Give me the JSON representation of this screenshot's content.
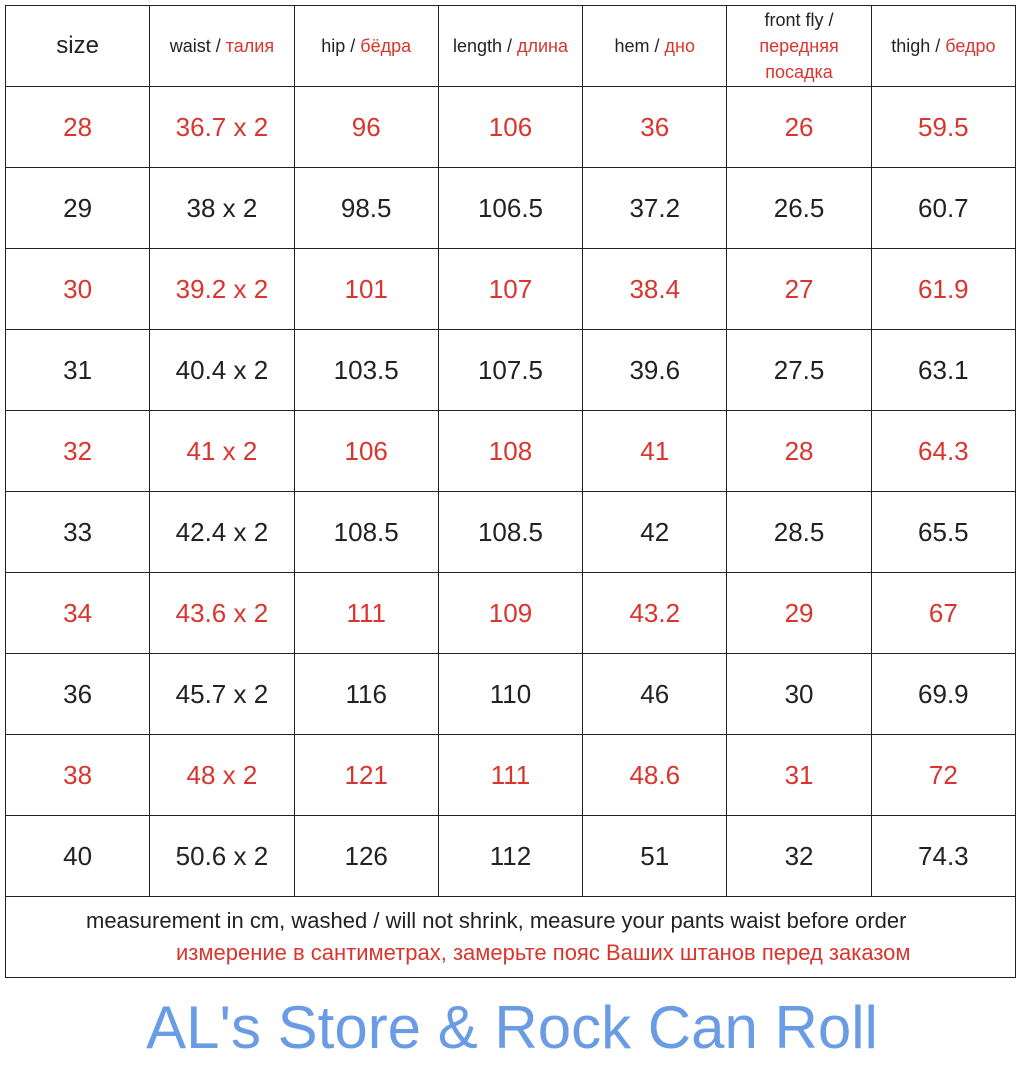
{
  "header": [
    {
      "en": "size",
      "ru": ""
    },
    {
      "en": "waist / ",
      "ru": "талия"
    },
    {
      "en": "hip / ",
      "ru": "бёдра"
    },
    {
      "en": "length / ",
      "ru": "длина"
    },
    {
      "en": "hem / ",
      "ru": "дно"
    },
    {
      "en": "front fly / ",
      "ru": "передняя посадка"
    },
    {
      "en": "thigh / ",
      "ru": "бедро"
    }
  ],
  "rows": [
    {
      "highlight": true,
      "cells": [
        "28",
        "36.7 x 2",
        "96",
        "106",
        "36",
        "26",
        "59.5"
      ]
    },
    {
      "highlight": false,
      "cells": [
        "29",
        "38 x 2",
        "98.5",
        "106.5",
        "37.2",
        "26.5",
        "60.7"
      ]
    },
    {
      "highlight": true,
      "cells": [
        "30",
        "39.2 x 2",
        "101",
        "107",
        "38.4",
        "27",
        "61.9"
      ]
    },
    {
      "highlight": false,
      "cells": [
        "31",
        "40.4 x 2",
        "103.5",
        "107.5",
        "39.6",
        "27.5",
        "63.1"
      ]
    },
    {
      "highlight": true,
      "cells": [
        "32",
        "41 x 2",
        "106",
        "108",
        "41",
        "28",
        "64.3"
      ]
    },
    {
      "highlight": false,
      "cells": [
        "33",
        "42.4 x 2",
        "108.5",
        "108.5",
        "42",
        "28.5",
        "65.5"
      ]
    },
    {
      "highlight": true,
      "cells": [
        "34",
        "43.6 x 2",
        "111",
        "109",
        "43.2",
        "29",
        "67"
      ]
    },
    {
      "highlight": false,
      "cells": [
        "36",
        "45.7 x 2",
        "116",
        "110",
        "46",
        "30",
        "69.9"
      ]
    },
    {
      "highlight": true,
      "cells": [
        "38",
        "48 x 2",
        "121",
        "111",
        "48.6",
        "31",
        "72"
      ]
    },
    {
      "highlight": false,
      "cells": [
        "40",
        "50.6 x 2",
        "126",
        "112",
        "51",
        "32",
        "74.3"
      ]
    }
  ],
  "footer": {
    "en": "measurement in cm, washed / will not shrink, measure your pants waist before order",
    "ru": "измерение в сантиметрах, замерьте пояс Ваших штанов перед заказом"
  },
  "watermark": "AL's Store & Rock Can Roll",
  "colors": {
    "highlight": "#d9352e",
    "watermark": "#6a9ce6",
    "text": "#222222"
  }
}
